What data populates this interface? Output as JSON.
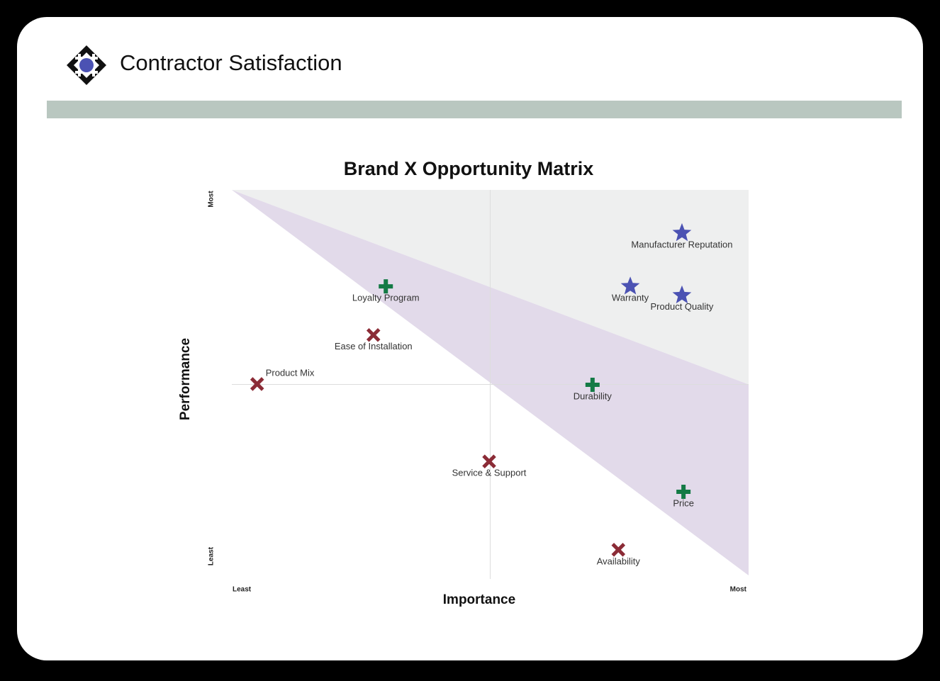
{
  "header": {
    "title": "Contractor Satisfaction"
  },
  "chart_data": {
    "type": "scatter",
    "title": "Brand X Opportunity Matrix",
    "x_label": "Importance",
    "y_label": "Performance",
    "xlim": [
      0,
      100
    ],
    "ylim": [
      0,
      100
    ],
    "xticks": [
      {
        "value": 0,
        "label": "Least"
      },
      {
        "value": 100,
        "label": "Most"
      }
    ],
    "yticks": [
      {
        "value": 0,
        "label": "Least"
      },
      {
        "value": 100,
        "label": "Most"
      }
    ],
    "quadrant_lines": true,
    "series": [
      {
        "marker": "star",
        "color": "#4b52b3",
        "labels": [
          "Manufacturer Reputation",
          "Warranty",
          "Product Quality"
        ],
        "x": [
          87.1,
          77.1,
          87.1
        ],
        "values": [
          88.9,
          75.2,
          72.9
        ]
      },
      {
        "marker": "plus",
        "color": "#137a45",
        "labels": [
          "Loyalty Program",
          "Durability",
          "Price"
        ],
        "x": [
          29.8,
          69.8,
          87.4
        ],
        "values": [
          75.2,
          49.9,
          22.4
        ]
      },
      {
        "marker": "cross",
        "color": "#8b2b36",
        "labels": [
          "Ease of Installation",
          "Product Mix",
          "Service & Support",
          "Availability"
        ],
        "x": [
          27.4,
          4.9,
          49.8,
          74.8
        ],
        "values": [
          62.7,
          50.1,
          30.2,
          7.5
        ]
      }
    ]
  }
}
